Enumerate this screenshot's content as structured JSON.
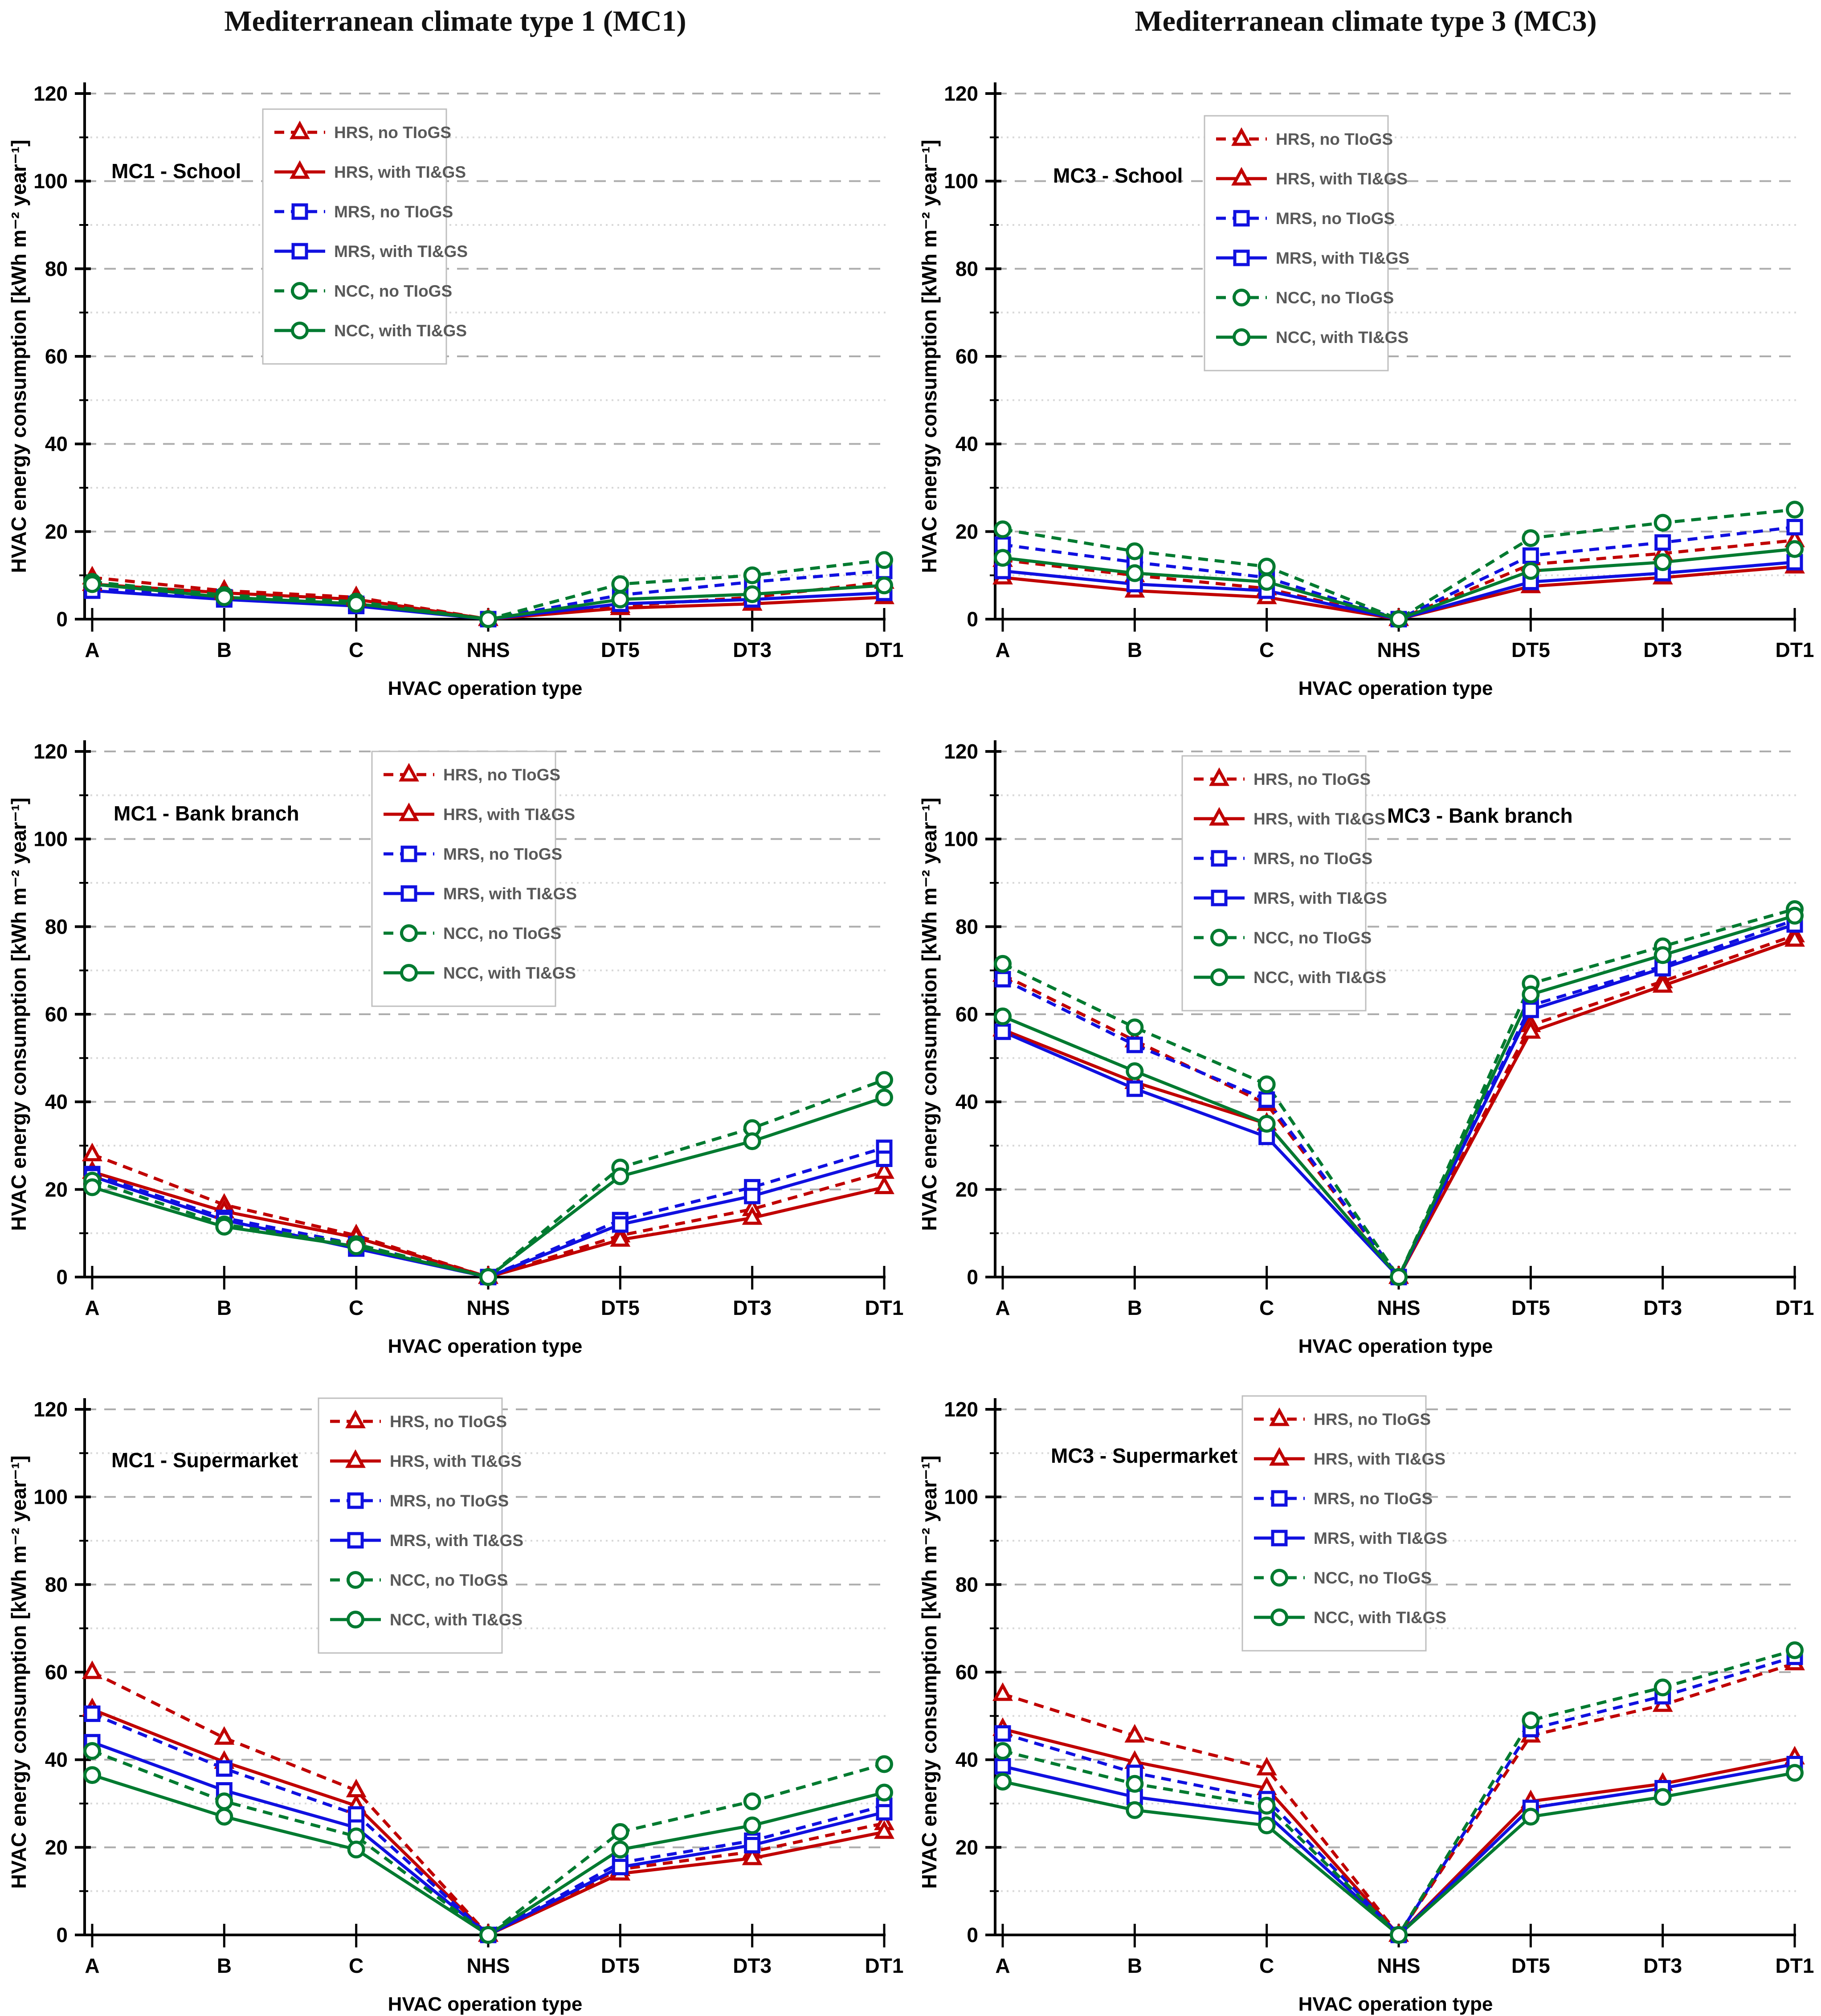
{
  "page": {
    "column_titles": [
      "Mediterranean climate type 1 (MC1)",
      "Mediterranean climate type 3 (MC3)"
    ]
  },
  "axes": {
    "x_title": "HVAC operation type",
    "y_title": "HVAC energy consumption  [kWh m⁻² year⁻¹]",
    "y_min": 0,
    "y_max": 120,
    "y_major_step": 20,
    "y_minor_step": 10,
    "grid": "horizontal, major dashed / minor dotted",
    "categories": [
      "A",
      "B",
      "C",
      "NHS",
      "DT5",
      "DT3",
      "DT1"
    ]
  },
  "series_meta": [
    {
      "key": "hrs_no",
      "label": "HRS, no TIoGS",
      "color": "#C00000",
      "dash": true,
      "marker": "triangle"
    },
    {
      "key": "hrs_with",
      "label": "HRS, with TI&GS",
      "color": "#C00000",
      "dash": false,
      "marker": "triangle"
    },
    {
      "key": "mrs_no",
      "label": "MRS, no TIoGS",
      "color": "#1010E0",
      "dash": true,
      "marker": "square"
    },
    {
      "key": "mrs_with",
      "label": "MRS, with TI&GS",
      "color": "#1010E0",
      "dash": false,
      "marker": "square"
    },
    {
      "key": "ncc_no",
      "label": "NCC, no TIoGS",
      "color": "#007A30",
      "dash": true,
      "marker": "circle"
    },
    {
      "key": "ncc_with",
      "label": "NCC, with TI&GS",
      "color": "#007A30",
      "dash": false,
      "marker": "circle"
    }
  ],
  "chart_data": [
    {
      "type": "line",
      "title": "MC1 - School",
      "xlabel": "HVAC operation type",
      "ylabel": "HVAC energy consumption  [kWh m⁻² year⁻¹]",
      "ylim": [
        0,
        120
      ],
      "categories": [
        "A",
        "B",
        "C",
        "NHS",
        "DT5",
        "DT3",
        "DT1"
      ],
      "legend_pos": [
        590,
        150
      ],
      "label_pos": [
        250,
        305
      ],
      "series": [
        {
          "key": "hrs_no",
          "name": "HRS, no TIoGS",
          "values": [
            9.5,
            6.5,
            5,
            0,
            3,
            5,
            8.5
          ]
        },
        {
          "key": "hrs_with",
          "name": "HRS, with TI&GS",
          "values": [
            8,
            6,
            4.5,
            0,
            2.5,
            3.5,
            5
          ]
        },
        {
          "key": "mrs_no",
          "name": "MRS, no TIoGS",
          "values": [
            7,
            5,
            3.5,
            0,
            5.5,
            8.5,
            11
          ]
        },
        {
          "key": "mrs_with",
          "name": "MRS, with TI&GS",
          "values": [
            6.5,
            4.5,
            3,
            0,
            3.5,
            4.5,
            6
          ]
        },
        {
          "key": "ncc_no",
          "name": "NCC, no TIoGS",
          "values": [
            8.5,
            5.5,
            4,
            0,
            8,
            10,
            13.5
          ]
        },
        {
          "key": "ncc_with",
          "name": "NCC, with TI&GS",
          "values": [
            8,
            5,
            3.5,
            0,
            4.5,
            5.7,
            7.7
          ]
        }
      ]
    },
    {
      "type": "line",
      "title": "MC3 - School",
      "xlabel": "HVAC operation type",
      "ylabel": "HVAC energy consumption  [kWh m⁻² year⁻¹]",
      "ylim": [
        0,
        120
      ],
      "categories": [
        "A",
        "B",
        "C",
        "NHS",
        "DT5",
        "DT3",
        "DT1"
      ],
      "legend_pos": [
        660,
        165
      ],
      "label_pos": [
        320,
        315
      ],
      "series": [
        {
          "key": "hrs_no",
          "name": "HRS, no TIoGS",
          "values": [
            13.5,
            10,
            7,
            0,
            12.5,
            15,
            18
          ]
        },
        {
          "key": "hrs_with",
          "name": "HRS, with TI&GS",
          "values": [
            9.5,
            6.5,
            5,
            0,
            7.5,
            9.5,
            12
          ]
        },
        {
          "key": "mrs_no",
          "name": "MRS, no TIoGS",
          "values": [
            17,
            13,
            9.5,
            0,
            14.5,
            17.5,
            21
          ]
        },
        {
          "key": "mrs_with",
          "name": "MRS, with TI&GS",
          "values": [
            11,
            8,
            6.5,
            0,
            8.5,
            10.5,
            13
          ]
        },
        {
          "key": "ncc_no",
          "name": "NCC, no TIoGS",
          "values": [
            20.5,
            15.5,
            12,
            0,
            18.5,
            22,
            25
          ]
        },
        {
          "key": "ncc_with",
          "name": "NCC, with TI&GS",
          "values": [
            14,
            10.5,
            8.5,
            0,
            11,
            13,
            16
          ]
        }
      ]
    },
    {
      "type": "line",
      "title": "MC1 - Bank branch",
      "xlabel": "HVAC operation type",
      "ylabel": "HVAC energy consumption  [kWh m⁻² year⁻¹]",
      "ylim": [
        0,
        120
      ],
      "categories": [
        "A",
        "B",
        "C",
        "NHS",
        "DT5",
        "DT3",
        "DT1"
      ],
      "legend_pos": [
        835,
        115
      ],
      "label_pos": [
        255,
        270
      ],
      "series": [
        {
          "key": "hrs_no",
          "name": "HRS, no TIoGS",
          "values": [
            28,
            16.5,
            9.5,
            0,
            9.5,
            15.5,
            24
          ]
        },
        {
          "key": "hrs_with",
          "name": "HRS, with TI&GS",
          "values": [
            24,
            15,
            9,
            0,
            8.5,
            13.5,
            20.5
          ]
        },
        {
          "key": "mrs_no",
          "name": "MRS, no TIoGS",
          "values": [
            23.5,
            13.5,
            7.5,
            0,
            13,
            20.5,
            29.5
          ]
        },
        {
          "key": "mrs_with",
          "name": "MRS, with TI&GS",
          "values": [
            23,
            13,
            6.5,
            0,
            12,
            18.5,
            27
          ]
        },
        {
          "key": "ncc_no",
          "name": "NCC, no TIoGS",
          "values": [
            22,
            12,
            7.5,
            0,
            25,
            34,
            45
          ]
        },
        {
          "key": "ncc_with",
          "name": "NCC, with TI&GS",
          "values": [
            20.5,
            11.5,
            7,
            0,
            23,
            31,
            41
          ]
        }
      ]
    },
    {
      "type": "line",
      "title": "MC3 - Bank branch",
      "xlabel": "HVAC operation type",
      "ylabel": "HVAC energy consumption  [kWh m⁻² year⁻¹]",
      "ylim": [
        0,
        120
      ],
      "categories": [
        "A",
        "B",
        "C",
        "NHS",
        "DT5",
        "DT3",
        "DT1"
      ],
      "legend_pos": [
        610,
        125
      ],
      "label_pos": [
        1070,
        275
      ],
      "series": [
        {
          "key": "hrs_no",
          "name": "HRS, no TIoGS",
          "values": [
            69,
            54,
            39.5,
            0,
            57.5,
            67.5,
            78
          ]
        },
        {
          "key": "hrs_with",
          "name": "HRS, with TI&GS",
          "values": [
            56.5,
            44.5,
            35,
            0,
            56,
            66.5,
            77
          ]
        },
        {
          "key": "mrs_no",
          "name": "MRS, no TIoGS",
          "values": [
            68,
            53,
            40.5,
            0,
            62,
            71,
            81.5
          ]
        },
        {
          "key": "mrs_with",
          "name": "MRS, with TI&GS",
          "values": [
            56,
            43,
            32,
            0,
            61,
            70.5,
            80.5
          ]
        },
        {
          "key": "ncc_no",
          "name": "NCC, no TIoGS",
          "values": [
            71.5,
            57,
            44,
            0,
            67,
            75.5,
            84
          ]
        },
        {
          "key": "ncc_with",
          "name": "NCC, with TI&GS",
          "values": [
            59.5,
            47,
            35,
            0,
            64.5,
            73.5,
            82.5
          ]
        }
      ]
    },
    {
      "type": "line",
      "title": "MC1 - Supermarket",
      "xlabel": "HVAC operation type",
      "ylabel": "HVAC energy consumption  [kWh m⁻² year⁻¹]",
      "ylim": [
        0,
        120
      ],
      "categories": [
        "A",
        "B",
        "C",
        "NHS",
        "DT5",
        "DT3",
        "DT1"
      ],
      "legend_pos": [
        715,
        90
      ],
      "label_pos": [
        250,
        245
      ],
      "series": [
        {
          "key": "hrs_no",
          "name": "HRS, no TIoGS",
          "values": [
            60,
            45,
            33,
            0,
            15,
            19,
            25.5
          ]
        },
        {
          "key": "hrs_with",
          "name": "HRS, with TI&GS",
          "values": [
            51.5,
            39.5,
            29.5,
            0,
            14,
            17.5,
            23.5
          ]
        },
        {
          "key": "mrs_no",
          "name": "MRS, no TIoGS",
          "values": [
            50.5,
            38,
            27.5,
            0,
            16.5,
            21.5,
            29.5
          ]
        },
        {
          "key": "mrs_with",
          "name": "MRS, with TI&GS",
          "values": [
            44,
            33,
            24.5,
            0,
            15.5,
            20.5,
            28
          ]
        },
        {
          "key": "ncc_no",
          "name": "NCC, no TIoGS",
          "values": [
            42,
            30.5,
            22.5,
            0,
            23.5,
            30.5,
            39
          ]
        },
        {
          "key": "ncc_with",
          "name": "NCC, with TI&GS",
          "values": [
            36.5,
            27,
            19.5,
            0,
            19.5,
            25,
            32.5
          ]
        }
      ]
    },
    {
      "type": "line",
      "title": "MC3 - Supermarket",
      "xlabel": "HVAC operation type",
      "ylabel": "HVAC energy consumption  [kWh m⁻² year⁻¹]",
      "ylim": [
        0,
        120
      ],
      "categories": [
        "A",
        "B",
        "C",
        "NHS",
        "DT5",
        "DT3",
        "DT1"
      ],
      "legend_pos": [
        745,
        85
      ],
      "label_pos": [
        315,
        235
      ],
      "series": [
        {
          "key": "hrs_no",
          "name": "HRS, no TIoGS",
          "values": [
            55,
            45.5,
            38,
            0,
            45.5,
            52.5,
            62
          ]
        },
        {
          "key": "hrs_with",
          "name": "HRS, with TI&GS",
          "values": [
            47,
            39.5,
            33.5,
            0,
            30.5,
            34.5,
            40.5
          ]
        },
        {
          "key": "mrs_no",
          "name": "MRS, no TIoGS",
          "values": [
            46,
            37,
            31,
            0,
            47,
            54.5,
            63.5
          ]
        },
        {
          "key": "mrs_with",
          "name": "MRS, with TI&GS",
          "values": [
            38.5,
            31.5,
            27.5,
            0,
            29,
            33.5,
            39
          ]
        },
        {
          "key": "ncc_no",
          "name": "NCC, no TIoGS",
          "values": [
            42,
            34.5,
            29.5,
            0,
            49,
            56.5,
            65
          ]
        },
        {
          "key": "ncc_with",
          "name": "NCC, with TI&GS",
          "values": [
            35,
            28.5,
            25,
            0,
            27,
            31.5,
            37
          ]
        }
      ]
    }
  ],
  "style_colors": {
    "major_grid": "#ADADAD",
    "minor_grid": "#D9D9D9",
    "axis": "#000000",
    "legend_border": "#BFBFBF",
    "legend_text": "#595959"
  }
}
